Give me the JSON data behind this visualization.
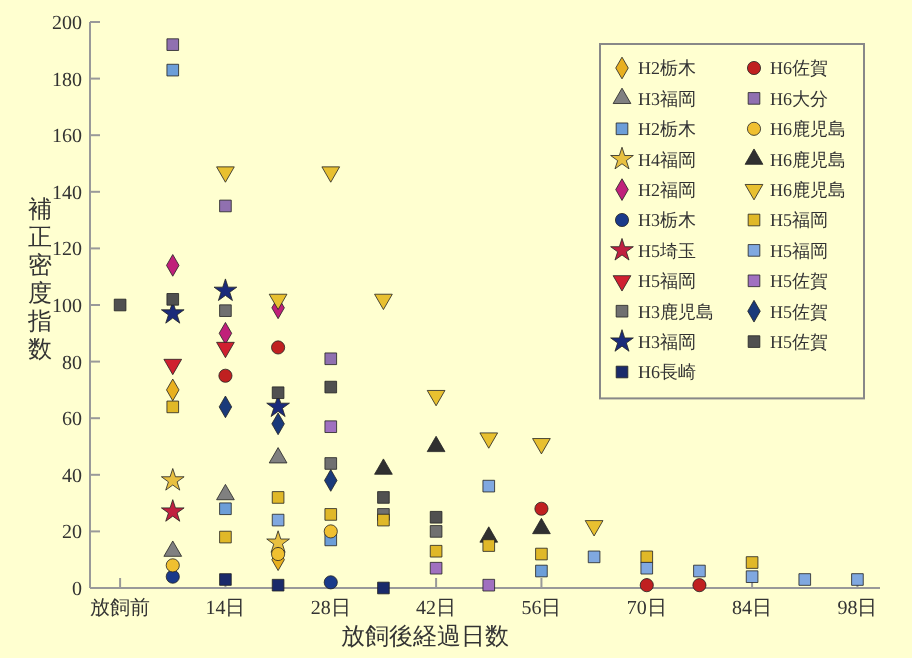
{
  "chart_data": {
    "type": "scatter",
    "xlabel": "放飼後経過日数",
    "ylabel": "補正密度指数",
    "xlim": [
      -4,
      101
    ],
    "xticks": [
      {
        "value": 0,
        "label": "放飼前"
      },
      {
        "value": 14,
        "label": "14日"
      },
      {
        "value": 28,
        "label": "28日"
      },
      {
        "value": 42,
        "label": "42日"
      },
      {
        "value": 56,
        "label": "56日"
      },
      {
        "value": 70,
        "label": "70日"
      },
      {
        "value": 84,
        "label": "84日"
      },
      {
        "value": 98,
        "label": "98日"
      }
    ],
    "ylim": [
      0,
      200
    ],
    "yticks": [
      0,
      20,
      40,
      60,
      80,
      100,
      120,
      140,
      160,
      180,
      200
    ],
    "grid": false,
    "legend": "top right",
    "series": [
      {
        "name": "H2栃木",
        "color": "#e8b020",
        "marker": "diamond",
        "x": [
          7,
          21
        ],
        "values": [
          70,
          10
        ]
      },
      {
        "name": "H3福岡",
        "color": "#808080",
        "marker": "triangle",
        "x": [
          7,
          14,
          21
        ],
        "values": [
          13,
          33,
          46
        ]
      },
      {
        "name": "H2栃木",
        "color": "#6c9ed8",
        "marker": "square",
        "x": [
          7,
          14,
          28,
          56
        ],
        "values": [
          183,
          28,
          17,
          6
        ]
      },
      {
        "name": "H4福岡",
        "color": "#e8c040",
        "marker": "star",
        "x": [
          7,
          21
        ],
        "values": [
          38,
          16
        ]
      },
      {
        "name": "H2福岡",
        "color": "#c0207a",
        "marker": "diamond",
        "x": [
          7,
          14,
          21
        ],
        "values": [
          114,
          90,
          99
        ]
      },
      {
        "name": "H3栃木",
        "color": "#1a3a8a",
        "marker": "circle",
        "x": [
          7,
          28
        ],
        "values": [
          4,
          2
        ]
      },
      {
        "name": "H5埼玉",
        "color": "#c02040",
        "marker": "star",
        "x": [
          7
        ],
        "values": [
          27
        ]
      },
      {
        "name": "H5福岡",
        "color": "#d02030",
        "marker": "triangle-down",
        "x": [
          7,
          14
        ],
        "values": [
          79,
          85
        ]
      },
      {
        "name": "H3鹿児島",
        "color": "#707070",
        "marker": "square",
        "x": [
          14,
          28,
          35,
          42
        ],
        "values": [
          98,
          44,
          26,
          20
        ]
      },
      {
        "name": "H3福岡",
        "color": "#1a2a7a",
        "marker": "star",
        "x": [
          7,
          14,
          21
        ],
        "values": [
          97,
          105,
          64
        ]
      },
      {
        "name": "H6長崎",
        "color": "#1a2a6a",
        "marker": "square",
        "x": [
          14,
          21,
          35
        ],
        "values": [
          3,
          1,
          0
        ]
      },
      {
        "name": "H6佐賀",
        "color": "#c02020",
        "marker": "circle",
        "x": [
          14,
          21,
          56,
          70,
          77
        ],
        "values": [
          75,
          85,
          28,
          1,
          1
        ]
      },
      {
        "name": "H6大分",
        "color": "#9070b0",
        "marker": "square",
        "x": [
          7,
          14,
          28
        ],
        "values": [
          192,
          135,
          81
        ]
      },
      {
        "name": "H6鹿児島",
        "color": "#f0c030",
        "marker": "circle",
        "x": [
          7,
          21,
          28
        ],
        "values": [
          8,
          12,
          20
        ]
      },
      {
        "name": "H6鹿児島",
        "color": "#303030",
        "marker": "triangle",
        "x": [
          35,
          42,
          49,
          56
        ],
        "values": [
          42,
          50,
          18,
          21
        ]
      },
      {
        "name": "H6鹿児島",
        "color": "#e8c030",
        "marker": "triangle-down",
        "x": [
          14,
          21,
          28,
          35,
          42,
          49,
          56,
          63
        ],
        "values": [
          147,
          102,
          147,
          102,
          68,
          53,
          51,
          22
        ]
      },
      {
        "name": "H5福岡",
        "color": "#e0b828",
        "marker": "square",
        "x": [
          7,
          14,
          21,
          28,
          35,
          42,
          49,
          56,
          70,
          84
        ],
        "values": [
          64,
          18,
          32,
          26,
          24,
          13,
          15,
          12,
          11,
          9
        ]
      },
      {
        "name": "H5福岡",
        "color": "#80a8e0",
        "marker": "square",
        "x": [
          21,
          49,
          63,
          70,
          77,
          84,
          91,
          98
        ],
        "values": [
          24,
          36,
          11,
          7,
          6,
          4,
          3,
          3
        ]
      },
      {
        "name": "H5佐賀",
        "color": "#a070c0",
        "marker": "square",
        "x": [
          28,
          42,
          49
        ],
        "values": [
          57,
          7,
          1
        ]
      },
      {
        "name": "H5佐賀",
        "color": "#1a3a7a",
        "marker": "diamond",
        "x": [
          14,
          21,
          28
        ],
        "values": [
          64,
          58,
          38
        ]
      },
      {
        "name": "H5佐賀",
        "color": "#505050",
        "marker": "square",
        "x": [
          0,
          7,
          21,
          28,
          35,
          42
        ],
        "values": [
          100,
          102,
          69,
          71,
          32,
          25
        ]
      }
    ]
  }
}
